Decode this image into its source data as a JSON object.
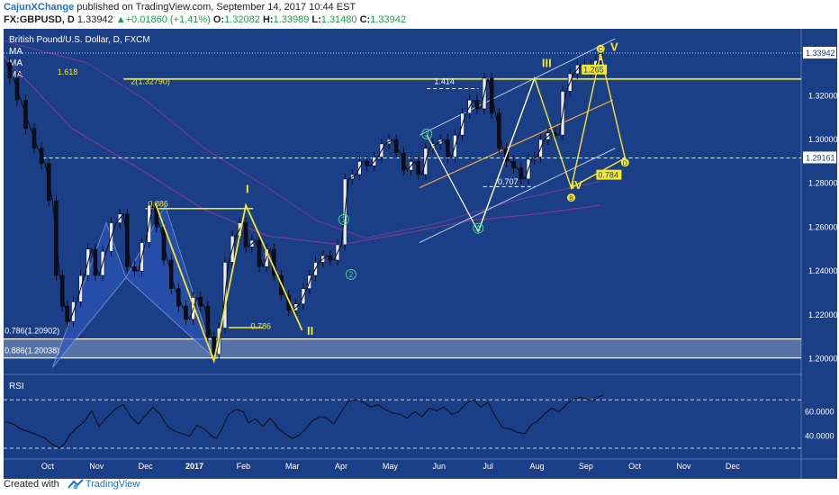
{
  "header": {
    "author": "CajunXChange",
    "published": "published on TradingView.com, September 14, 2017 10:44 EST",
    "symbol_line": "FX:GBPUSD, D",
    "last": "1.33942",
    "change": "+0.01860 (+1.41%)",
    "o_label": "O:",
    "o_val": "1.32082",
    "h_label": "H:",
    "h_val": "1.33989",
    "l_label": "L:",
    "l_val": "1.31480",
    "c_label": "C:",
    "c_val": "1.33942"
  },
  "legend": {
    "title": "British Pound/U.S. Dollar, D, FXCM",
    "ma1": "MA",
    "ma2": "MA",
    "ma3": "MA",
    "rsi": "RSI"
  },
  "footer": {
    "created": "Created with",
    "brand": "TradingView"
  },
  "colors": {
    "background": "#1b3f87",
    "price_line": "#0c0c1a",
    "yellow": "#f5e72a",
    "pattern_fill": "#2b55b8",
    "ma": "#7a3c93",
    "channel": "#b9c5de",
    "orange": "#f0a43a",
    "zone": "#c8d1e2"
  },
  "chart_data": {
    "type": "line",
    "title": "British Pound/U.S. Dollar, D, FXCM",
    "price_axis": {
      "ticks": [
        "1.32000",
        "1.30000",
        "1.28000",
        "1.26000",
        "1.24000",
        "1.22000",
        "1.20000"
      ],
      "tick_values": [
        1.32,
        1.3,
        1.28,
        1.26,
        1.24,
        1.22,
        1.2
      ],
      "ylim": [
        1.1945,
        1.3505
      ],
      "labels": [
        {
          "text": "1.33942",
          "value": 1.33942
        },
        {
          "text": "1.29161",
          "value": 1.29161
        }
      ]
    },
    "rsi_axis": {
      "ticks": [
        "60.0000",
        "40.0000"
      ],
      "tick_values": [
        60,
        40
      ],
      "ylim": [
        27,
        88
      ],
      "levels": [
        70,
        30
      ]
    },
    "time_axis": {
      "labels": [
        "Oct",
        "Nov",
        "Dec",
        "2017",
        "Feb",
        "Mar",
        "Apr",
        "May",
        "Jun",
        "Jul",
        "Aug",
        "Sep",
        "Oct",
        "Nov",
        "Dec"
      ],
      "months": [
        0,
        1,
        2,
        3,
        4,
        5,
        6,
        7,
        8,
        9,
        10,
        11,
        12,
        13,
        14
      ],
      "xlim": [
        -0.9,
        15.4
      ],
      "bold_label": "2017"
    },
    "series": [
      {
        "name": "",
        "type": "price",
        "x": [
          -0.85,
          -0.7,
          -0.55,
          -0.35,
          -0.2,
          -0.05,
          0.1,
          0.25,
          0.35,
          0.45,
          0.6,
          0.75,
          0.9,
          1.05,
          1.2,
          1.4,
          1.55,
          1.7,
          1.85,
          2.0,
          2.15,
          2.3,
          2.45,
          2.6,
          2.75,
          2.9,
          3.05,
          3.2,
          3.35,
          3.45,
          3.55,
          3.7,
          3.85,
          4.0,
          4.1,
          4.25,
          4.4,
          4.55,
          4.7,
          4.85,
          5.0,
          5.15,
          5.3,
          5.4,
          5.55,
          5.7,
          5.85,
          6.0,
          6.15,
          6.3,
          6.45,
          6.6,
          6.75,
          6.9,
          7.05,
          7.2,
          7.35,
          7.5,
          7.65,
          7.8,
          7.95,
          8.1,
          8.25,
          8.4,
          8.55,
          8.7,
          8.85,
          9.0,
          9.15,
          9.3,
          9.45,
          9.6,
          9.75,
          9.9,
          10.0,
          10.15,
          10.3,
          10.45,
          10.6,
          10.75,
          10.9,
          11.05,
          11.15,
          11.25,
          11.35
        ],
        "y": [
          1.335,
          1.328,
          1.318,
          1.305,
          1.296,
          1.289,
          1.272,
          1.238,
          1.224,
          1.217,
          1.226,
          1.238,
          1.25,
          1.238,
          1.249,
          1.262,
          1.266,
          1.242,
          1.24,
          1.253,
          1.27,
          1.26,
          1.245,
          1.232,
          1.224,
          1.218,
          1.228,
          1.224,
          1.21,
          1.202,
          1.214,
          1.244,
          1.256,
          1.262,
          1.251,
          1.254,
          1.242,
          1.25,
          1.238,
          1.229,
          1.222,
          1.225,
          1.232,
          1.238,
          1.244,
          1.247,
          1.245,
          1.252,
          1.282,
          1.284,
          1.29,
          1.288,
          1.292,
          1.298,
          1.3,
          1.294,
          1.286,
          1.29,
          1.284,
          1.296,
          1.298,
          1.3,
          1.292,
          1.302,
          1.312,
          1.318,
          1.314,
          1.328,
          1.312,
          1.296,
          1.29,
          1.287,
          1.282,
          1.291,
          1.292,
          1.3,
          1.303,
          1.302,
          1.322,
          1.33,
          1.334,
          1.334,
          1.331,
          1.336,
          1.339
        ]
      },
      {
        "name": "",
        "type": "RSI",
        "x": [
          -0.85,
          -0.7,
          -0.55,
          -0.35,
          -0.2,
          -0.05,
          0.1,
          0.25,
          0.35,
          0.45,
          0.6,
          0.75,
          0.9,
          1.05,
          1.2,
          1.4,
          1.55,
          1.7,
          1.85,
          2.0,
          2.15,
          2.3,
          2.45,
          2.6,
          2.75,
          2.9,
          3.05,
          3.2,
          3.35,
          3.45,
          3.55,
          3.7,
          3.85,
          4.0,
          4.1,
          4.25,
          4.4,
          4.55,
          4.7,
          4.85,
          5.0,
          5.15,
          5.3,
          5.4,
          5.55,
          5.7,
          5.85,
          6.0,
          6.15,
          6.3,
          6.45,
          6.6,
          6.75,
          6.9,
          7.05,
          7.2,
          7.35,
          7.5,
          7.65,
          7.8,
          7.95,
          8.1,
          8.25,
          8.4,
          8.55,
          8.7,
          8.85,
          9.0,
          9.15,
          9.3,
          9.45,
          9.6,
          9.75,
          9.9,
          10.0,
          10.15,
          10.3,
          10.45,
          10.6,
          10.75,
          10.9,
          11.05,
          11.15,
          11.25,
          11.35
        ],
        "y": [
          52,
          50,
          46,
          43,
          41,
          38,
          33,
          30,
          34,
          41,
          47,
          52,
          61,
          48,
          55,
          63,
          66,
          56,
          50,
          57,
          64,
          58,
          48,
          44,
          42,
          40,
          49,
          46,
          40,
          38,
          45,
          58,
          62,
          60,
          51,
          54,
          48,
          55,
          47,
          42,
          38,
          41,
          47,
          52,
          56,
          55,
          50,
          60,
          69,
          70,
          68,
          64,
          66,
          62,
          59,
          58,
          55,
          60,
          56,
          63,
          61,
          64,
          58,
          60,
          67,
          70,
          64,
          68,
          56,
          47,
          46,
          43,
          42,
          50,
          52,
          58,
          63,
          60,
          66,
          71,
          72,
          70,
          69,
          72,
          74
        ]
      }
    ],
    "annotations": [
      {
        "text": "0.886",
        "x": 2.05,
        "y": 1.2695
      },
      {
        "text": "1.618",
        "x": 0.2,
        "y": 1.3295
      },
      {
        "text": "2(1.32790)",
        "x": 1.7,
        "y": 1.3253
      },
      {
        "text": "1.414",
        "x": 7.9,
        "y": 1.3253
      },
      {
        "text": "0.786",
        "x": 4.15,
        "y": 1.2135
      },
      {
        "text": "0.707",
        "x": 9.2,
        "y": 1.2795
      },
      {
        "text": "1.265",
        "x": 10.95,
        "y": 1.3305
      },
      {
        "text": "0.784",
        "x": 11.25,
        "y": 1.2825
      },
      {
        "text": "I",
        "x": 4.05,
        "y": 1.2755
      },
      {
        "text": "II",
        "x": 5.3,
        "y": 1.211
      },
      {
        "text": "III",
        "x": 10.1,
        "y": 1.333
      },
      {
        "text": "IV",
        "x": 10.7,
        "y": 1.2775
      },
      {
        "text": "V",
        "x": 11.5,
        "y": 1.3405
      },
      {
        "text": "1",
        "x": 6.05,
        "y": 1.2635
      },
      {
        "text": "2",
        "x": 6.2,
        "y": 1.2385
      },
      {
        "text": "3",
        "x": 7.75,
        "y": 1.3025
      },
      {
        "text": "A",
        "x": 8.8,
        "y": 1.2595
      },
      {
        "text": "B",
        "x": 10.7,
        "y": 1.2735
      },
      {
        "text": "C",
        "x": 11.3,
        "y": 1.3414
      },
      {
        "text": "D",
        "x": 11.8,
        "y": 1.2895
      },
      {
        "text": "0.786(1.20902)",
        "x": -0.88,
        "y": 1.2116
      },
      {
        "text": "0.886(1.20038)",
        "x": -0.88,
        "y": 1.2026
      }
    ]
  }
}
